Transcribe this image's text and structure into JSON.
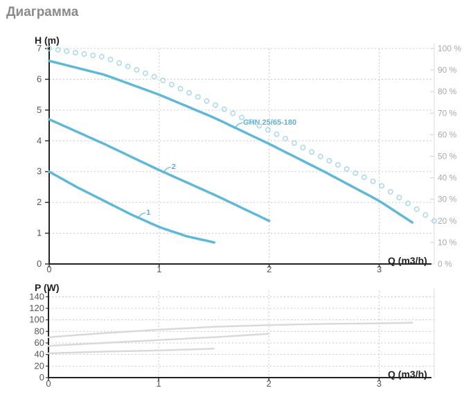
{
  "header": {
    "title": "Диаграмма"
  },
  "colors": {
    "curve": "#5fb8d8",
    "efficiency": "#a9d8ea",
    "power": "#d9d9d9",
    "grid": "#c8c8c8"
  },
  "chart_data": [
    {
      "type": "line",
      "ylabel": "H (m)",
      "xlabel": "Q (m3/h)",
      "xlim": [
        0,
        3.5
      ],
      "ylim": [
        0,
        7
      ],
      "x_ticks": [
        "0",
        "1",
        "2",
        "3"
      ],
      "y_ticks": [
        "0",
        "1",
        "2",
        "3",
        "4",
        "5",
        "6",
        "7"
      ],
      "y2_ticks": [
        "0 %",
        "10 %",
        "20 %",
        "30 %",
        "40 %",
        "50 %",
        "60 %",
        "70 %",
        "80 %",
        "90 %",
        "100 %"
      ],
      "y2lim": [
        0,
        100
      ],
      "grid": true,
      "series": [
        {
          "name": "1",
          "x": [
            0,
            0.25,
            0.5,
            0.75,
            1.0,
            1.25,
            1.5
          ],
          "y": [
            3.0,
            2.5,
            2.05,
            1.6,
            1.2,
            0.9,
            0.7
          ]
        },
        {
          "name": "2",
          "x": [
            0,
            0.5,
            1.0,
            1.5,
            2.0
          ],
          "y": [
            4.7,
            3.9,
            3.05,
            2.25,
            1.4
          ]
        },
        {
          "name": "GHN 25/65-180",
          "x": [
            0,
            0.5,
            1.0,
            1.5,
            2.0,
            2.5,
            3.0,
            3.3
          ],
          "y": [
            6.6,
            6.15,
            5.5,
            4.75,
            3.9,
            3.0,
            2.05,
            1.35
          ]
        },
        {
          "name": "efficiency",
          "axis": "y2",
          "style": "dotted",
          "x": [
            0,
            0.5,
            1.0,
            1.5,
            2.0,
            2.5,
            3.0,
            3.5
          ],
          "y": [
            100,
            96,
            86,
            74,
            62,
            49,
            37,
            20
          ]
        }
      ]
    },
    {
      "type": "line",
      "ylabel": "P (W)",
      "xlabel": "Q (m3/h)",
      "xlim": [
        0,
        3.5
      ],
      "ylim": [
        0,
        150
      ],
      "x_ticks": [
        "0",
        "1",
        "2",
        "3"
      ],
      "y_ticks": [
        "0",
        "20",
        "40",
        "60",
        "80",
        "100",
        "120",
        "140"
      ],
      "grid": true,
      "series": [
        {
          "name": "1",
          "x": [
            0,
            0.5,
            1.0,
            1.5
          ],
          "y": [
            42,
            45,
            47,
            50
          ]
        },
        {
          "name": "2",
          "x": [
            0,
            0.5,
            1.0,
            1.5,
            2.0
          ],
          "y": [
            55,
            60,
            65,
            70,
            76
          ]
        },
        {
          "name": "GHN 25/65-180",
          "x": [
            0,
            0.5,
            1.0,
            1.5,
            2.0,
            2.5,
            3.0,
            3.3
          ],
          "y": [
            70,
            77,
            83,
            88,
            91,
            93,
            94,
            95
          ]
        }
      ]
    }
  ]
}
